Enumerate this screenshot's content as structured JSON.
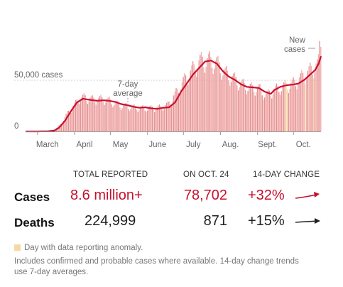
{
  "chart_data": {
    "type": "bar",
    "title": "",
    "xlabel": "",
    "ylabel": "",
    "x_range": [
      "2020-02-20",
      "2020-10-24"
    ],
    "ylim": [
      0,
      86000
    ],
    "y_ticks": [
      {
        "value": 0,
        "label": "0"
      },
      {
        "value": 50000,
        "label": "50,000 cases"
      }
    ],
    "x_ticks": [
      {
        "date": "2020-03-01",
        "label": "March"
      },
      {
        "date": "2020-04-01",
        "label": "April"
      },
      {
        "date": "2020-05-01",
        "label": "May"
      },
      {
        "date": "2020-06-01",
        "label": "June"
      },
      {
        "date": "2020-07-01",
        "label": "July"
      },
      {
        "date": "2020-08-01",
        "label": "Aug."
      },
      {
        "date": "2020-09-01",
        "label": "Sept."
      },
      {
        "date": "2020-10-01",
        "label": "Oct."
      }
    ],
    "annotations": {
      "new_cases": [
        "New",
        "cases"
      ],
      "seven_day": [
        "7-day",
        "average"
      ]
    },
    "anomaly_dates": [
      "2020-09-25",
      "2020-09-26",
      "2020-10-11",
      "2020-10-18"
    ],
    "series": [
      {
        "type": "bar",
        "points": [
          [
            "2020-02-20",
            0
          ],
          [
            "2020-03-01",
            50
          ],
          [
            "2020-03-08",
            250
          ],
          [
            "2020-03-15",
            1200
          ],
          [
            "2020-03-19",
            5000
          ],
          [
            "2020-03-22",
            9000
          ],
          [
            "2020-03-26",
            17000
          ],
          [
            "2020-03-29",
            21000
          ],
          [
            "2020-04-02",
            26000
          ],
          [
            "2020-04-04",
            31000
          ],
          [
            "2020-04-10",
            32000
          ],
          [
            "2020-04-16",
            30000
          ],
          [
            "2020-04-24",
            30500
          ],
          [
            "2020-05-01",
            28500
          ],
          [
            "2020-05-08",
            25000
          ],
          [
            "2020-05-15",
            23500
          ],
          [
            "2020-05-22",
            22500
          ],
          [
            "2020-05-29",
            21500
          ],
          [
            "2020-06-05",
            22000
          ],
          [
            "2020-06-12",
            22500
          ],
          [
            "2020-06-18",
            25000
          ],
          [
            "2020-06-25",
            36000
          ],
          [
            "2020-07-01",
            47000
          ],
          [
            "2020-07-08",
            57000
          ],
          [
            "2020-07-15",
            66000
          ],
          [
            "2020-07-22",
            67000
          ],
          [
            "2020-07-29",
            64000
          ],
          [
            "2020-08-05",
            55000
          ],
          [
            "2020-08-12",
            50000
          ],
          [
            "2020-08-19",
            44000
          ],
          [
            "2020-08-26",
            41000
          ],
          [
            "2020-09-02",
            40500
          ],
          [
            "2020-09-08",
            34000
          ],
          [
            "2020-09-15",
            39000
          ],
          [
            "2020-09-22",
            42000
          ],
          [
            "2020-10-01",
            45000
          ],
          [
            "2020-10-08",
            51000
          ],
          [
            "2020-10-15",
            57000
          ],
          [
            "2020-10-20",
            62000
          ],
          [
            "2020-10-22",
            72000
          ],
          [
            "2020-10-23",
            84000
          ],
          [
            "2020-10-24",
            78702
          ]
        ]
      },
      {
        "name": "7-day average",
        "type": "line",
        "points": [
          [
            "2020-02-20",
            0
          ],
          [
            "2020-03-01",
            0
          ],
          [
            "2020-03-10",
            200
          ],
          [
            "2020-03-15",
            800
          ],
          [
            "2020-03-19",
            3500
          ],
          [
            "2020-03-24",
            10000
          ],
          [
            "2020-03-29",
            19000
          ],
          [
            "2020-04-03",
            27000
          ],
          [
            "2020-04-08",
            30500
          ],
          [
            "2020-04-13",
            29500
          ],
          [
            "2020-04-20",
            28500
          ],
          [
            "2020-04-25",
            29000
          ],
          [
            "2020-04-30",
            28500
          ],
          [
            "2020-05-05",
            27500
          ],
          [
            "2020-05-10",
            25500
          ],
          [
            "2020-05-15",
            24500
          ],
          [
            "2020-05-20",
            23000
          ],
          [
            "2020-05-25",
            22000
          ],
          [
            "2020-05-30",
            22500
          ],
          [
            "2020-06-04",
            21500
          ],
          [
            "2020-06-09",
            21000
          ],
          [
            "2020-06-14",
            22000
          ],
          [
            "2020-06-19",
            22500
          ],
          [
            "2020-06-24",
            27000
          ],
          [
            "2020-06-29",
            37000
          ],
          [
            "2020-07-04",
            45000
          ],
          [
            "2020-07-09",
            53000
          ],
          [
            "2020-07-14",
            59000
          ],
          [
            "2020-07-19",
            65000
          ],
          [
            "2020-07-24",
            66000
          ],
          [
            "2020-07-29",
            63000
          ],
          [
            "2020-08-03",
            56000
          ],
          [
            "2020-08-08",
            51000
          ],
          [
            "2020-08-13",
            48000
          ],
          [
            "2020-08-18",
            44000
          ],
          [
            "2020-08-23",
            41500
          ],
          [
            "2020-08-28",
            41000
          ],
          [
            "2020-09-02",
            40500
          ],
          [
            "2020-09-07",
            37000
          ],
          [
            "2020-09-12",
            35000
          ],
          [
            "2020-09-15",
            38500
          ],
          [
            "2020-09-20",
            41500
          ],
          [
            "2020-09-25",
            43000
          ],
          [
            "2020-09-30",
            43500
          ],
          [
            "2020-10-05",
            44500
          ],
          [
            "2020-10-10",
            48000
          ],
          [
            "2020-10-15",
            53000
          ],
          [
            "2020-10-19",
            57000
          ],
          [
            "2020-10-22",
            63000
          ],
          [
            "2020-10-24",
            70000
          ]
        ]
      }
    ]
  },
  "stats": {
    "headers": {
      "total": "TOTAL REPORTED",
      "date": "ON OCT. 24",
      "change": "14-DAY CHANGE"
    },
    "rows": [
      {
        "label": "Cases",
        "total": "8.6 million+",
        "on_date": "78,702",
        "change": "+32%",
        "trend": "up",
        "color": "#c8102e"
      },
      {
        "label": "Deaths",
        "total": "224,999",
        "on_date": "871",
        "change": "+15%",
        "trend": "flat",
        "color": "#222222"
      }
    ]
  },
  "legend": {
    "anomaly": "Day with data reporting anomaly."
  },
  "note": "Includes confirmed and probable cases where available. 14-day change trends use 7-day averages.",
  "colors": {
    "bar": "#f2b1b1",
    "bar_dark": "#e58f8f",
    "line": "#c8102e",
    "anomaly": "#f6d9a0",
    "grid": "#d0d0d0"
  }
}
